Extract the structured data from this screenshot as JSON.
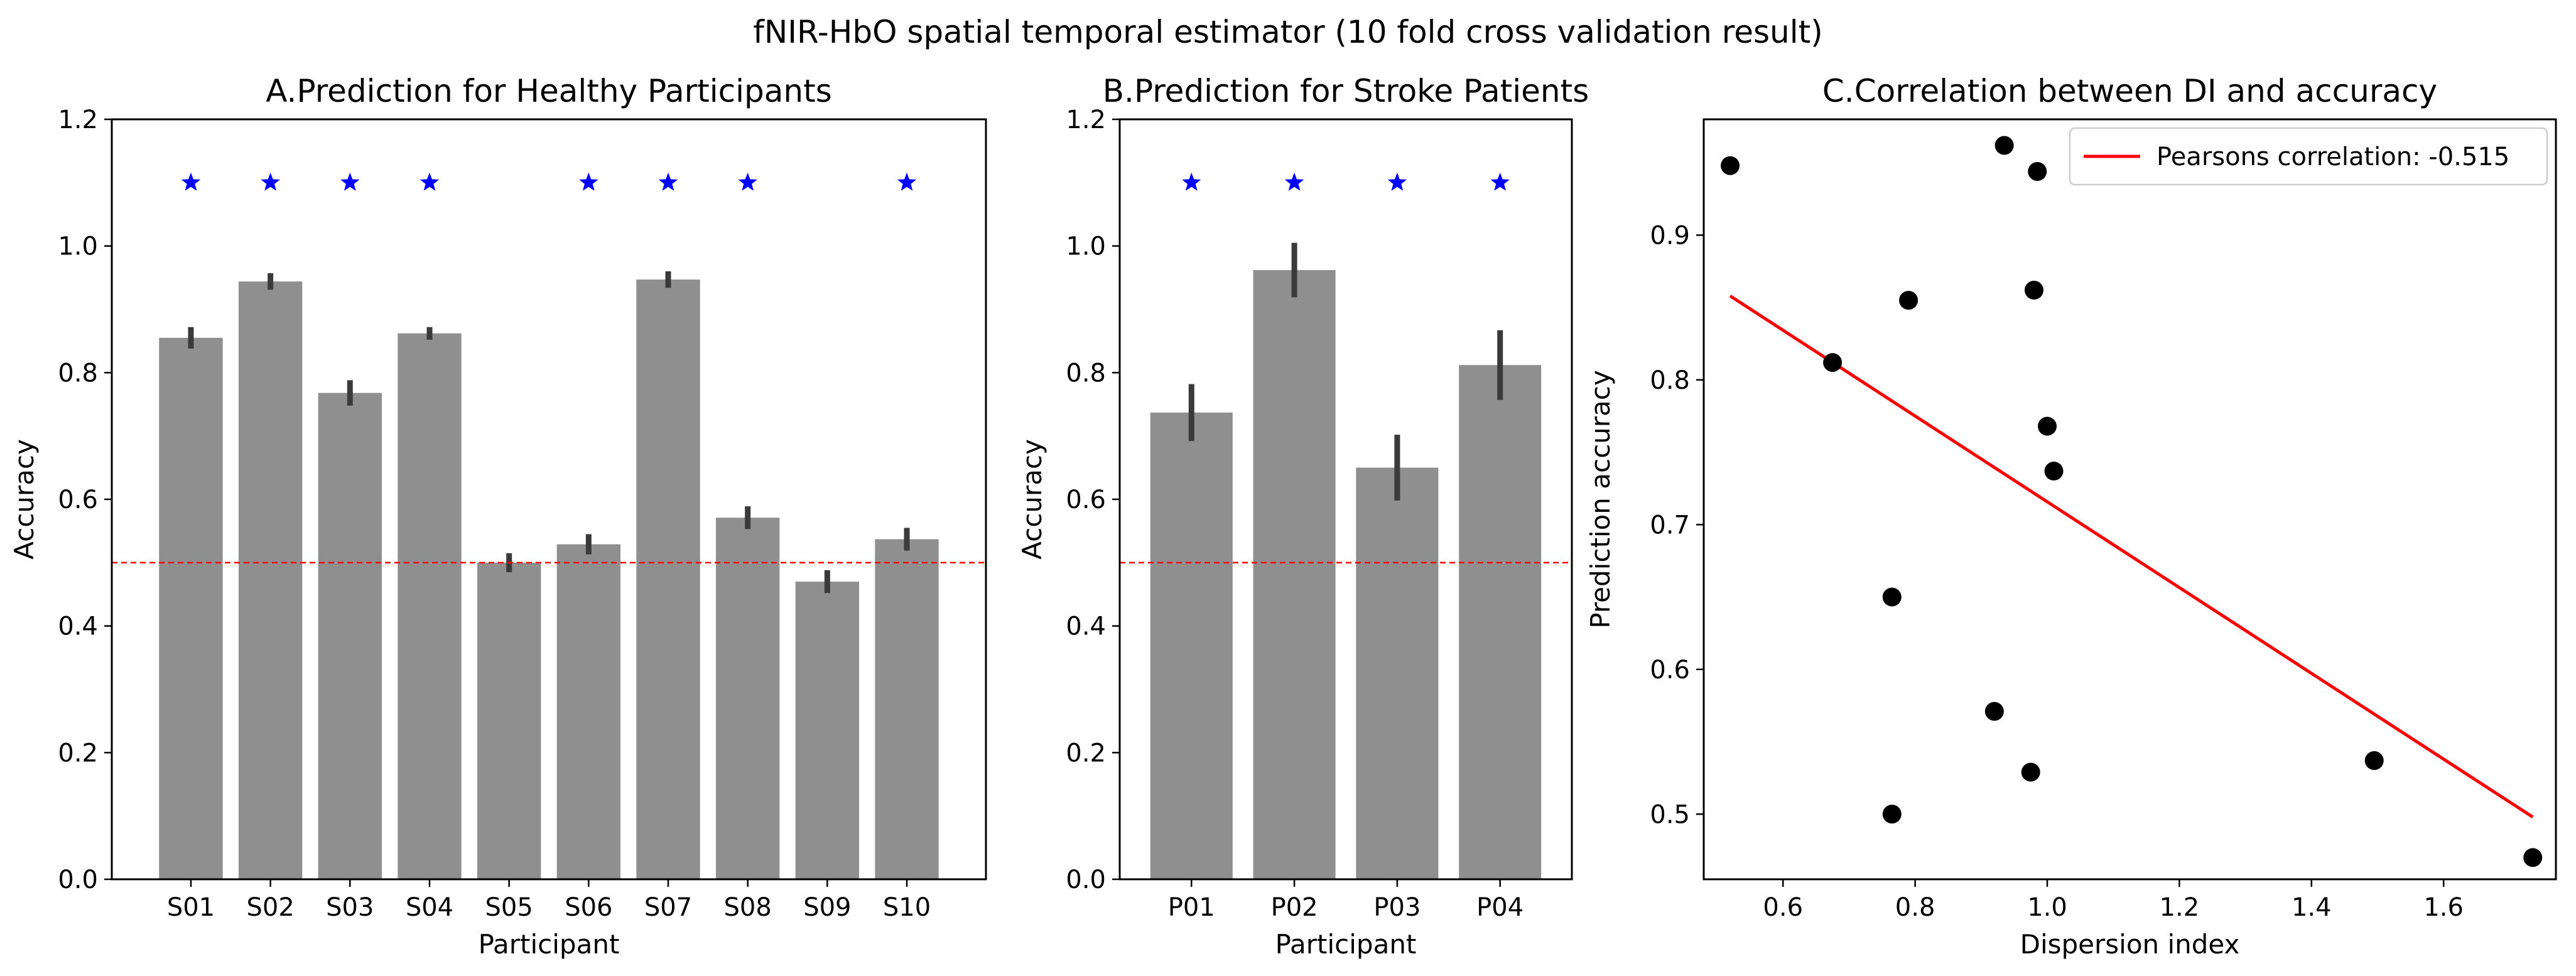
{
  "figure_title": "fNIR-HbO spatial temporal estimator (10 fold cross validation result)",
  "chart_data": [
    {
      "id": "A",
      "type": "bar",
      "title": "A.Prediction for Healthy Participants",
      "xlabel": "Participant",
      "ylabel": "Accuracy",
      "ylim": [
        0,
        1.2
      ],
      "yticks": [
        0.0,
        0.2,
        0.4,
        0.6,
        0.8,
        1.0,
        1.2
      ],
      "ytick_labels": [
        "0.0",
        "0.2",
        "0.4",
        "0.6",
        "0.8",
        "1.0",
        "1.2"
      ],
      "categories": [
        "S01",
        "S02",
        "S03",
        "S04",
        "S05",
        "S06",
        "S07",
        "S08",
        "S09",
        "S10"
      ],
      "values": [
        0.855,
        0.944,
        0.768,
        0.862,
        0.5,
        0.529,
        0.947,
        0.571,
        0.47,
        0.537
      ],
      "errors": [
        0.017,
        0.013,
        0.02,
        0.01,
        0.015,
        0.016,
        0.013,
        0.018,
        0.018,
        0.018
      ],
      "significant": [
        true,
        true,
        true,
        true,
        false,
        true,
        true,
        true,
        false,
        true
      ],
      "marker_level": 1.1,
      "chance_line": 0.5,
      "colors": {
        "bar": "#8f8f8f",
        "error": "#3a3a3a",
        "star": "#0000ff",
        "chance": "#ff0000"
      }
    },
    {
      "id": "B",
      "type": "bar",
      "title": "B.Prediction for Stroke Patients",
      "xlabel": "Participant",
      "ylabel": "Accuracy",
      "ylim": [
        0,
        1.2
      ],
      "yticks": [
        0.0,
        0.2,
        0.4,
        0.6,
        0.8,
        1.0,
        1.2
      ],
      "ytick_labels": [
        "0.0",
        "0.2",
        "0.4",
        "0.6",
        "0.8",
        "1.0",
        "1.2"
      ],
      "categories": [
        "P01",
        "P02",
        "P03",
        "P04"
      ],
      "values": [
        0.737,
        0.962,
        0.65,
        0.812
      ],
      "errors": [
        0.045,
        0.043,
        0.052,
        0.055
      ],
      "significant": [
        true,
        true,
        true,
        true
      ],
      "marker_level": 1.1,
      "chance_line": 0.5,
      "colors": {
        "bar": "#8f8f8f",
        "error": "#3a3a3a",
        "star": "#0000ff",
        "chance": "#ff0000"
      }
    },
    {
      "id": "C",
      "type": "scatter",
      "title": "C.Correlation between DI and accuracy",
      "xlabel": "Dispersion index",
      "ylabel": "Prediction accuracy",
      "xlim": [
        0.48,
        1.77
      ],
      "ylim": [
        0.455,
        0.98
      ],
      "xticks": [
        0.6,
        0.8,
        1.0,
        1.2,
        1.4,
        1.6
      ],
      "xtick_labels": [
        "0.6",
        "0.8",
        "1.0",
        "1.2",
        "1.4",
        "1.6"
      ],
      "yticks": [
        0.5,
        0.6,
        0.7,
        0.8,
        0.9
      ],
      "ytick_labels": [
        "0.5",
        "0.6",
        "0.7",
        "0.8",
        "0.9"
      ],
      "points": [
        {
          "x": 0.52,
          "y": 0.948
        },
        {
          "x": 0.935,
          "y": 0.962
        },
        {
          "x": 0.985,
          "y": 0.944
        },
        {
          "x": 0.79,
          "y": 0.855
        },
        {
          "x": 0.98,
          "y": 0.862
        },
        {
          "x": 0.675,
          "y": 0.812
        },
        {
          "x": 1.0,
          "y": 0.768
        },
        {
          "x": 1.01,
          "y": 0.737
        },
        {
          "x": 0.765,
          "y": 0.65
        },
        {
          "x": 0.92,
          "y": 0.571
        },
        {
          "x": 0.975,
          "y": 0.529
        },
        {
          "x": 0.765,
          "y": 0.5
        },
        {
          "x": 1.495,
          "y": 0.537
        },
        {
          "x": 1.735,
          "y": 0.47
        }
      ],
      "fit_line": {
        "x": [
          0.52,
          1.735
        ],
        "y": [
          0.858,
          0.498
        ]
      },
      "legend": {
        "label": "Pearsons correlation: -0.515",
        "position": "upper right"
      },
      "colors": {
        "point": "#000000",
        "fit": "#ff0000"
      }
    }
  ]
}
